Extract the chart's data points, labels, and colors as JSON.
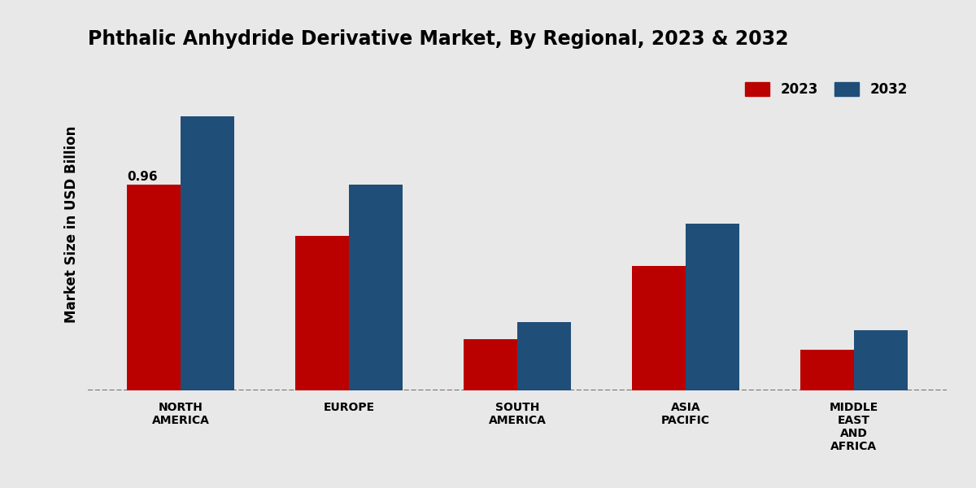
{
  "title": "Phthalic Anhydride Derivative Market, By Regional, 2023 & 2032",
  "ylabel": "Market Size in USD Billion",
  "categories": [
    "NORTH\nAMERICA",
    "EUROPE",
    "SOUTH\nAMERICA",
    "ASIA\nPACIFIC",
    "MIDDLE\nEAST\nAND\nAFRICA"
  ],
  "values_2023": [
    0.96,
    0.72,
    0.24,
    0.58,
    0.19
  ],
  "values_2032": [
    1.28,
    0.96,
    0.32,
    0.78,
    0.28
  ],
  "color_2023": "#bb0000",
  "color_2032": "#1f4e79",
  "bar_width": 0.32,
  "annotation_value": "0.96",
  "annotation_region": 0,
  "bg_color_light": "#e8e8e8",
  "bg_color_white": "#f0f0f0",
  "legend_labels": [
    "2023",
    "2032"
  ],
  "ylim": [
    0,
    1.55
  ],
  "title_fontsize": 17,
  "axis_label_fontsize": 12,
  "tick_fontsize": 10,
  "legend_fontsize": 12
}
